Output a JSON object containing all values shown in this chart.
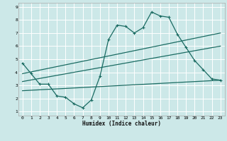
{
  "xlabel": "Humidex (Indice chaleur)",
  "bg_color": "#cce8e8",
  "grid_color": "#ffffff",
  "line_color": "#1a6b62",
  "xlim": [
    -0.5,
    23.5
  ],
  "ylim": [
    0.7,
    9.3
  ],
  "xticks": [
    0,
    1,
    2,
    3,
    4,
    5,
    6,
    7,
    8,
    9,
    10,
    11,
    12,
    13,
    14,
    15,
    16,
    17,
    18,
    19,
    20,
    21,
    22,
    23
  ],
  "yticks": [
    1,
    2,
    3,
    4,
    5,
    6,
    7,
    8,
    9
  ],
  "line1_x": [
    0,
    1,
    2,
    3,
    4,
    5,
    6,
    7,
    8,
    9,
    10,
    11,
    12,
    13,
    14,
    15,
    16,
    17,
    18,
    19,
    20,
    21,
    22,
    23
  ],
  "line1_y": [
    4.7,
    3.9,
    3.1,
    3.1,
    2.2,
    2.1,
    1.6,
    1.3,
    1.9,
    3.7,
    6.5,
    7.6,
    7.5,
    7.0,
    7.4,
    8.6,
    8.3,
    8.2,
    6.9,
    5.9,
    4.9,
    4.2,
    3.5,
    3.4
  ],
  "line2_x": [
    0,
    23
  ],
  "line2_y": [
    3.9,
    7.0
  ],
  "line3_x": [
    0,
    23
  ],
  "line3_y": [
    3.3,
    6.0
  ],
  "line4_x": [
    0,
    23
  ],
  "line4_y": [
    2.6,
    3.4
  ]
}
